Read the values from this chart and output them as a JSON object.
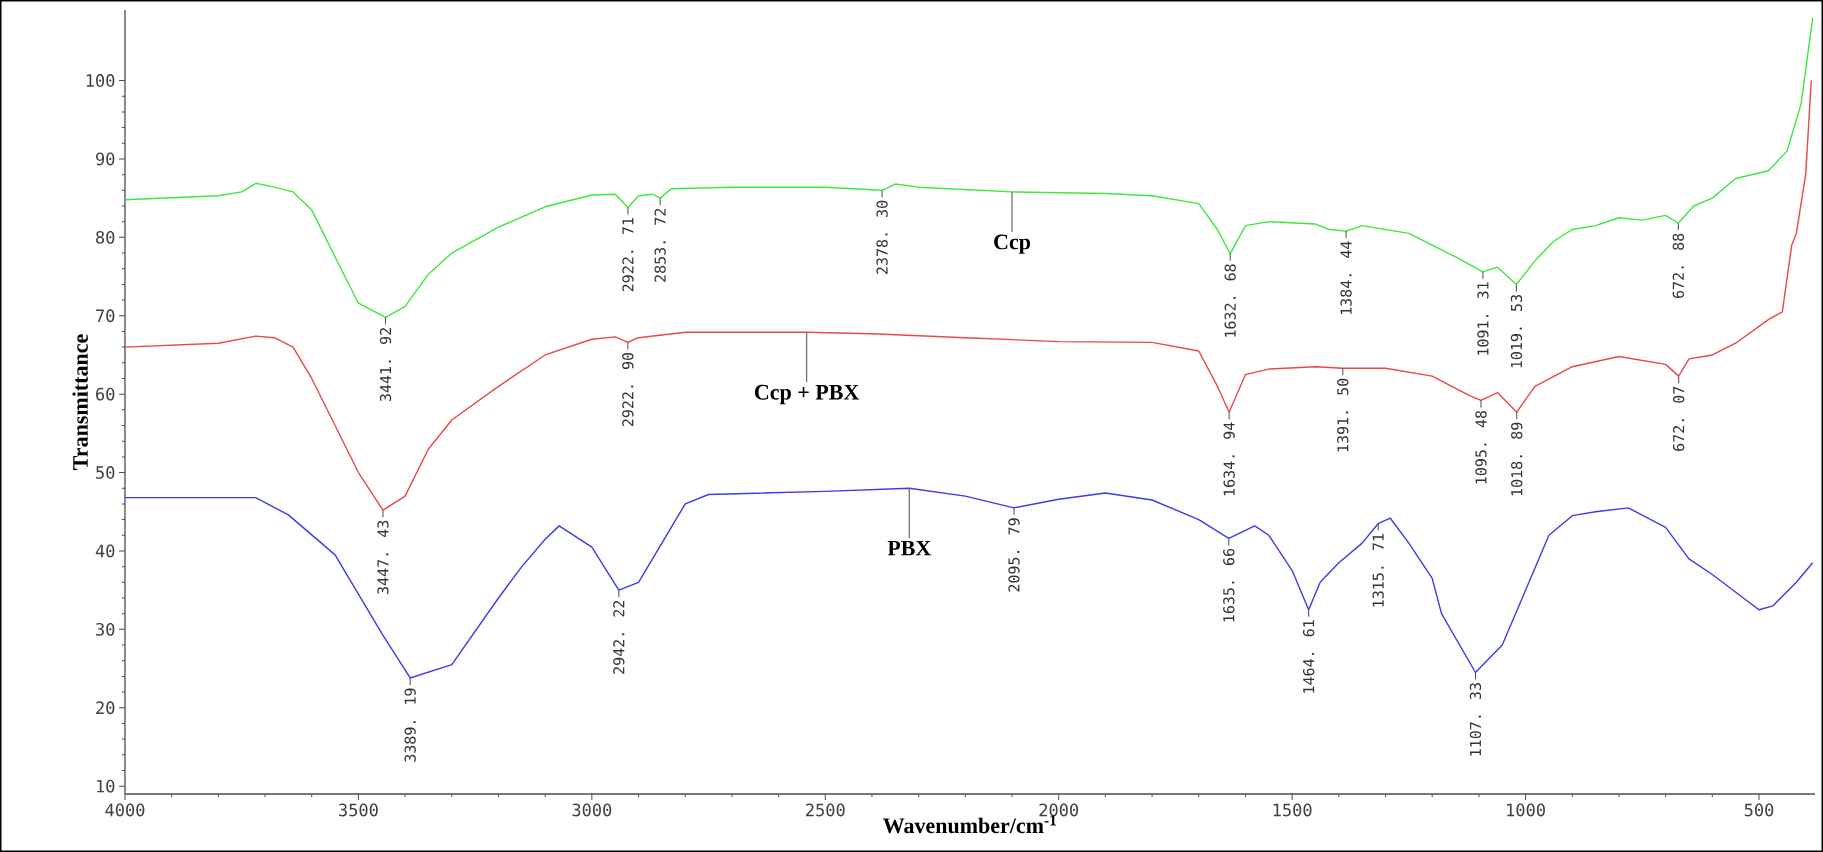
{
  "chart_data": {
    "type": "line",
    "xlabel": "Wavenumber/cm$^{-1}$",
    "ylabel": "Transmittance",
    "xlim": [
      4000,
      380
    ],
    "ylim": [
      9,
      109
    ],
    "xticks": [
      4000,
      3500,
      3000,
      2500,
      2000,
      1500,
      1000,
      500
    ],
    "yticks": [
      10,
      20,
      30,
      40,
      50,
      60,
      70,
      80,
      90,
      100
    ],
    "grid": false,
    "legend": false,
    "line_style": "solid",
    "series": [
      {
        "name": "Ccp",
        "color": "#3ce83c",
        "x": [
          4000,
          3800,
          3750,
          3720,
          3680,
          3640,
          3600,
          3550,
          3500,
          3441.92,
          3400,
          3350,
          3300,
          3200,
          3100,
          3000,
          2950,
          2922.71,
          2900,
          2870,
          2853.72,
          2830,
          2700,
          2500,
          2378.3,
          2350,
          2300,
          2100,
          1900,
          1800,
          1700,
          1660,
          1632.68,
          1600,
          1550,
          1450,
          1420,
          1384.44,
          1350,
          1250,
          1150,
          1091.31,
          1060,
          1019.53,
          980,
          940,
          900,
          850,
          800,
          750,
          700,
          672.88,
          640,
          600,
          550,
          480,
          440,
          410,
          385
        ],
        "values": [
          84.8,
          85.3,
          85.8,
          86.9,
          86.4,
          85.8,
          83.5,
          77.5,
          71.6,
          69.8,
          71.2,
          75.3,
          78,
          81.3,
          83.9,
          85.4,
          85.5,
          83.8,
          85.3,
          85.5,
          85.0,
          86.2,
          86.4,
          86.4,
          86.0,
          86.8,
          86.4,
          85.8,
          85.6,
          85.3,
          84.3,
          81,
          77.9,
          81.5,
          82.0,
          81.7,
          81.0,
          80.8,
          81.5,
          80.5,
          77.5,
          75.6,
          76.2,
          74.0,
          77,
          79.5,
          81,
          81.5,
          82.5,
          82.2,
          82.8,
          81.8,
          84.0,
          85,
          87.5,
          88.5,
          91,
          97,
          108
        ]
      },
      {
        "name": "Ccp + PBX",
        "color": "#e84848",
        "x": [
          4000,
          3800,
          3720,
          3680,
          3640,
          3600,
          3550,
          3500,
          3447.43,
          3400,
          3350,
          3300,
          3200,
          3100,
          3000,
          2950,
          2922.9,
          2900,
          2800,
          2600,
          2540,
          2400,
          2200,
          2000,
          1800,
          1700,
          1660,
          1634.94,
          1600,
          1550,
          1450,
          1391.5,
          1300,
          1200,
          1120,
          1095.48,
          1060,
          1018.89,
          980,
          900,
          800,
          700,
          672.07,
          650,
          600,
          550,
          480,
          450,
          430,
          420,
          400,
          388
        ],
        "values": [
          66.0,
          66.5,
          67.4,
          67.2,
          66,
          62,
          56,
          50,
          45.2,
          47,
          53,
          56.7,
          61,
          65,
          67,
          67.3,
          66.6,
          67.2,
          67.9,
          67.9,
          67.9,
          67.7,
          67.2,
          66.7,
          66.6,
          65.5,
          61,
          57.7,
          62.5,
          63.2,
          63.5,
          63.3,
          63.3,
          62.3,
          59.8,
          59.2,
          60.2,
          57.7,
          61,
          63.5,
          64.8,
          63.8,
          62.3,
          64.5,
          65,
          66.5,
          69.5,
          70.5,
          79,
          80.5,
          88,
          100
        ]
      },
      {
        "name": "PBX",
        "color": "#3c3ce8",
        "x": [
          4000,
          3720,
          3650,
          3550,
          3450,
          3389.19,
          3300,
          3200,
          3150,
          3100,
          3070,
          3000,
          2942.22,
          2900,
          2850,
          2800,
          2750,
          2500,
          2320,
          2200,
          2095.79,
          2000,
          1900,
          1800,
          1700,
          1635.66,
          1580,
          1550,
          1500,
          1464.61,
          1440,
          1400,
          1350,
          1315.71,
          1290,
          1250,
          1200,
          1180,
          1107.33,
          1050,
          1000,
          950,
          900,
          850,
          780,
          700,
          650,
          600,
          500,
          470,
          420,
          385
        ],
        "values": [
          46.8,
          46.8,
          44.6,
          39.5,
          29.5,
          23.8,
          25.5,
          34,
          38,
          41.5,
          43.2,
          40.5,
          35.0,
          36,
          41,
          46,
          47.2,
          47.6,
          48.0,
          47,
          45.5,
          46.6,
          47.4,
          46.5,
          44,
          41.6,
          43.2,
          42,
          37.5,
          32.5,
          36,
          38.5,
          41,
          43.5,
          44.2,
          41,
          36.5,
          32,
          24.5,
          28,
          35,
          42,
          44.5,
          45,
          45.5,
          43,
          39,
          37,
          32.5,
          33,
          36,
          38.5
        ]
      }
    ],
    "annotations": [
      {
        "text": "3441. 92",
        "x": 3441.92,
        "y": 69.8
      },
      {
        "text": "2922. 71",
        "x": 2922.71,
        "y": 83.8
      },
      {
        "text": "2853. 72",
        "x": 2853.72,
        "y": 85.0
      },
      {
        "text": "2378. 30",
        "x": 2378.3,
        "y": 86.0
      },
      {
        "text": "1632. 68",
        "x": 1632.68,
        "y": 77.9
      },
      {
        "text": "1384. 44",
        "x": 1384.44,
        "y": 80.8
      },
      {
        "text": "1091. 31",
        "x": 1091.31,
        "y": 75.6
      },
      {
        "text": "1019. 53",
        "x": 1019.53,
        "y": 74.0
      },
      {
        "text": "672. 88",
        "x": 672.88,
        "y": 81.8
      },
      {
        "text": "3447. 43",
        "x": 3447.43,
        "y": 45.2
      },
      {
        "text": "2922. 90",
        "x": 2922.9,
        "y": 66.6
      },
      {
        "text": "1634. 94",
        "x": 1634.94,
        "y": 57.7
      },
      {
        "text": "1391. 50",
        "x": 1391.5,
        "y": 63.3
      },
      {
        "text": "1095. 48",
        "x": 1095.48,
        "y": 59.2
      },
      {
        "text": "1018. 89",
        "x": 1018.89,
        "y": 57.7
      },
      {
        "text": "672. 07",
        "x": 672.07,
        "y": 62.3
      },
      {
        "text": "3389. 19",
        "x": 3389.19,
        "y": 23.8
      },
      {
        "text": "2942. 22",
        "x": 2942.22,
        "y": 35.0
      },
      {
        "text": "2095. 79",
        "x": 2095.79,
        "y": 45.5
      },
      {
        "text": "1635. 66",
        "x": 1635.66,
        "y": 41.6
      },
      {
        "text": "1464. 61",
        "x": 1464.61,
        "y": 32.5
      },
      {
        "text": "1315. 71",
        "x": 1315.71,
        "y": 43.5
      },
      {
        "text": "1107. 33",
        "x": 1107.33,
        "y": 24.5
      }
    ]
  }
}
